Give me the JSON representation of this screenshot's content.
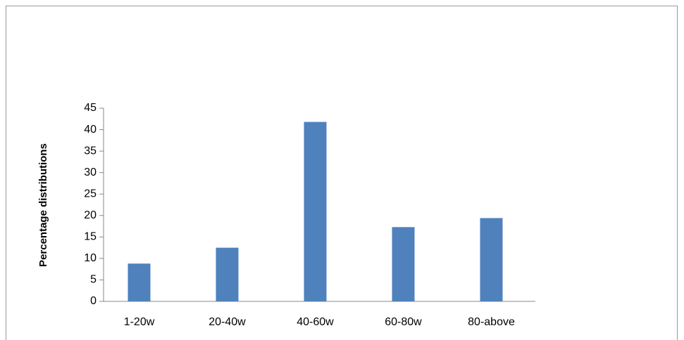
{
  "chart_data": {
    "type": "bar",
    "y_label": "Percentage distributions",
    "categories": [
      "1-20w",
      "20-40w",
      "40-60w",
      "60-80w",
      "80-above"
    ],
    "values": [
      8.8,
      12.5,
      41.8,
      17.3,
      19.4
    ],
    "color": "#4f81bd",
    "ylim": [
      0,
      45
    ],
    "yticks": [
      0,
      5,
      10,
      15,
      20,
      25,
      30,
      35,
      40,
      45
    ],
    "grid": false
  }
}
